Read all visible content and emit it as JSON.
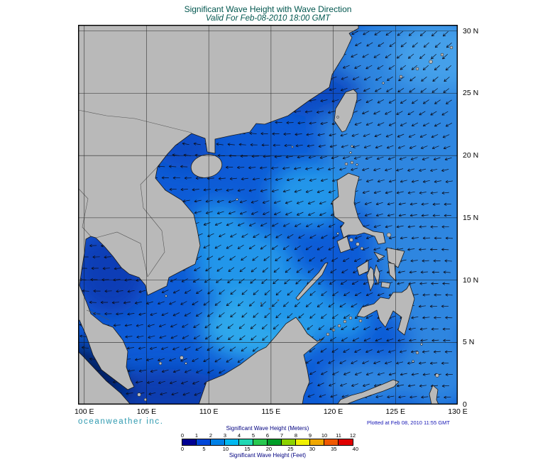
{
  "header": {
    "title": "Significant Wave Height with Wave Direction",
    "subtitle": "Valid For Feb-08-2010 18:00 GMT"
  },
  "footer": {
    "branding": "oceanweather inc.",
    "plotted": "Plotted at Feb 08, 2010 11:55 GMT"
  },
  "axes": {
    "lon_labels": [
      "100 E",
      "105 E",
      "110 E",
      "115 E",
      "120 E",
      "125 E",
      "130 E"
    ],
    "lat_labels": [
      "30 N",
      "25 N",
      "20 N",
      "15 N",
      "10 N",
      "5 N",
      "0"
    ],
    "lon_values": [
      100,
      105,
      110,
      115,
      120,
      125,
      130
    ],
    "lat_values": [
      30,
      25,
      20,
      15,
      10,
      5,
      0
    ],
    "lon_min": 99.5,
    "lon_max": 130,
    "lat_min": 0,
    "lat_max": 30.5,
    "grid_interval_deg": 5
  },
  "legend": {
    "meters_label": "Significant Wave Height (Meters)",
    "feet_label": "Significant Wave Height (Feet)",
    "meters_ticks": [
      "0",
      "1",
      "2",
      "3",
      "4",
      "5",
      "6",
      "7",
      "8",
      "9",
      "10",
      "11",
      "12"
    ],
    "feet_ticks": [
      "0",
      "5",
      "10",
      "15",
      "20",
      "25",
      "30",
      "35",
      "40"
    ],
    "colors": [
      "#000092",
      "#0046d8",
      "#0080e6",
      "#00b8f0",
      "#22d8b4",
      "#28c850",
      "#009e28",
      "#8cd200",
      "#f0f000",
      "#f0a800",
      "#f05800",
      "#e00000"
    ]
  },
  "map_data": {
    "type": "geographic wave height field with direction arrows",
    "region_visible": "South China Sea, Gulf of Thailand, Philippine Sea, western Pacific",
    "wave_direction": "arrows point generally west to southwest",
    "approx_heights_m": {
      "south_china_sea_central": 2,
      "philippine_sea_east_of_philippines": 1.5,
      "gulf_of_thailand": 1,
      "gulf_of_tonkin": 1,
      "malacca_strait": 0.2,
      "sulu_celebes_seas": 1.5
    },
    "palette": {
      "land": "#b9b9b9",
      "coast_line": "#1a1a1a",
      "border_line": "#555555",
      "grid_line": "#111111",
      "arrow": "#0c0c18",
      "sea_base": "#0d5bd6",
      "pacific": "#2e86e0",
      "pacific_light": "#45a0ea",
      "scs_light": "#2496ea",
      "scs_cyan": "#2fa8ec",
      "coastal_dark": "#0c4cc4",
      "gulf_dark": "#0a3eb6",
      "bottom_dark": "#0a3cb0",
      "strait_darkest": "#041a5e"
    },
    "title_color": "#00564e",
    "branding_color": "#2e9ab0",
    "plotted_color": "#1515b5",
    "legend_label_color": "#000080"
  }
}
